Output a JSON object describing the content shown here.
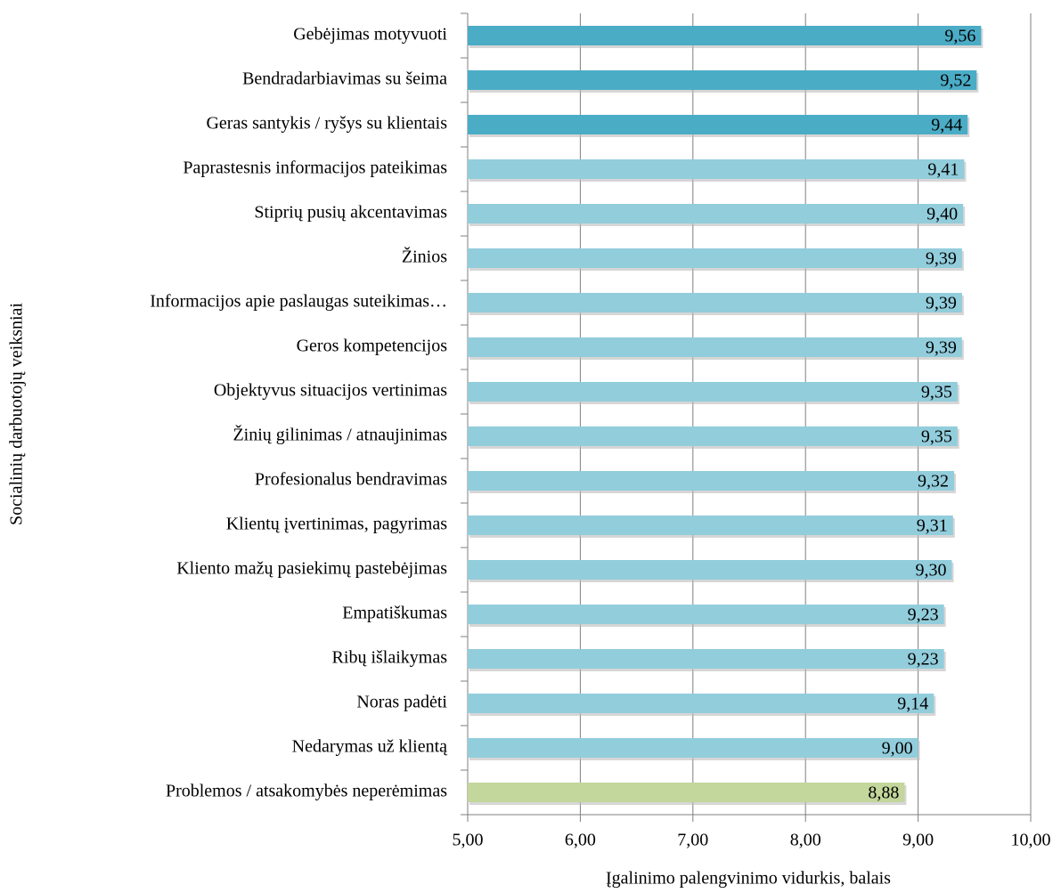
{
  "chart_data": {
    "type": "bar",
    "orientation": "horizontal",
    "xlabel": "Įgalinimo palengvinimo vidurkis, balais",
    "ylabel": "Socialinių darbuotojų veiksniai",
    "categories": [
      "Gebėjimas motyvuoti",
      "Bendradarbiavimas su šeima",
      "Geras santykis / ryšys su klientais",
      "Paprastesnis informacijos pateikimas",
      "Stiprių pusių akcentavimas",
      "Žinios",
      "Informacijos apie paslaugas suteikimas…",
      "Geros kompetencijos",
      "Objektyvus situacijos vertinimas",
      "Žinių gilinimas / atnaujinimas",
      "Profesionalus bendravimas",
      "Klientų įvertinimas, pagyrimas",
      "Kliento mažų pasiekimų pastebėjimas",
      "Empatiškumas",
      "Ribų išlaikymas",
      "Noras padėti",
      "Nedarymas už klientą",
      "Problemos / atsakomybės neperėmimas"
    ],
    "values": [
      9.56,
      9.52,
      9.44,
      9.41,
      9.4,
      9.39,
      9.39,
      9.39,
      9.35,
      9.35,
      9.32,
      9.31,
      9.3,
      9.23,
      9.23,
      9.14,
      9.0,
      8.88
    ],
    "value_labels": [
      "9,56",
      "9,52",
      "9,44",
      "9,41",
      "9,40",
      "9,39",
      "9,39",
      "9,39",
      "9,35",
      "9,35",
      "9,32",
      "9,31",
      "9,30",
      "9,23",
      "9,23",
      "9,14",
      "9,00",
      "8,88"
    ],
    "colors": [
      "#4bacc6",
      "#4bacc6",
      "#4bacc6",
      "#92cddc",
      "#92cddc",
      "#92cddc",
      "#92cddc",
      "#92cddc",
      "#92cddc",
      "#92cddc",
      "#92cddc",
      "#92cddc",
      "#92cddc",
      "#92cddc",
      "#92cddc",
      "#92cddc",
      "#92cddc",
      "#c3d69b"
    ],
    "xlim": [
      5,
      10
    ],
    "xticks": [
      {
        "value": 5,
        "label": "5,00"
      },
      {
        "value": 6,
        "label": "6,00"
      },
      {
        "value": 7,
        "label": "7,00"
      },
      {
        "value": 8,
        "label": "8,00"
      },
      {
        "value": 9,
        "label": "9,00"
      },
      {
        "value": 10,
        "label": "10,00"
      }
    ],
    "grid": true
  }
}
